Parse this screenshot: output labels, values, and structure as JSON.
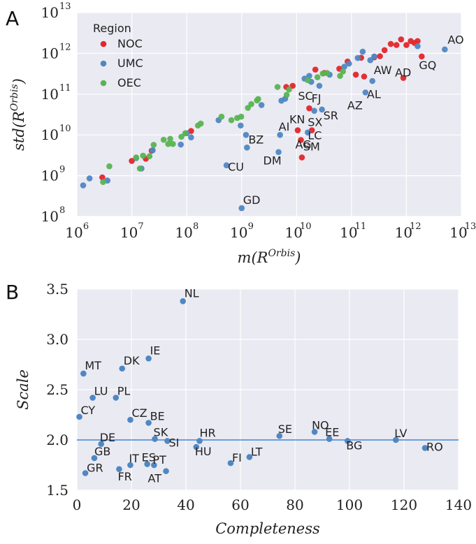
{
  "colors": {
    "NOC": "#e3262a",
    "UMC": "#4f87c3",
    "OEC": "#58b452",
    "line": "#3b86d4",
    "bg": "#eaeaf2",
    "grid": "#ffffff"
  },
  "chart_data": [
    {
      "panel": "A",
      "type": "scatter",
      "xlabel": "m(R^{Orbis})",
      "ylabel": "std(R^{Orbis})",
      "xscale": "log",
      "yscale": "log",
      "xlim": [
        1000000,
        10000000000000
      ],
      "ylim": [
        100000000,
        10000000000000
      ],
      "xticks": [
        {
          "base": "10",
          "exp": "6",
          "value": 1000000
        },
        {
          "base": "10",
          "exp": "7",
          "value": 10000000
        },
        {
          "base": "10",
          "exp": "8",
          "value": 100000000
        },
        {
          "base": "10",
          "exp": "9",
          "value": 1000000000
        },
        {
          "base": "10",
          "exp": "10",
          "value": 10000000000
        },
        {
          "base": "10",
          "exp": "11",
          "value": 100000000000
        },
        {
          "base": "10",
          "exp": "12",
          "value": 1000000000000
        },
        {
          "base": "10",
          "exp": "13",
          "value": 10000000000000
        }
      ],
      "yticks": [
        {
          "base": "10",
          "exp": "8",
          "value": 100000000
        },
        {
          "base": "10",
          "exp": "9",
          "value": 1000000000
        },
        {
          "base": "10",
          "exp": "10",
          "value": 10000000000
        },
        {
          "base": "10",
          "exp": "11",
          "value": 100000000000
        },
        {
          "base": "10",
          "exp": "12",
          "value": 1000000000000
        },
        {
          "base": "10",
          "exp": "13",
          "value": 10000000000000
        }
      ],
      "legend": {
        "title": "Region",
        "placement": "top-left",
        "entries": [
          {
            "label": "NOC",
            "color_key": "NOC"
          },
          {
            "label": "UMC",
            "color_key": "UMC"
          },
          {
            "label": "OEC",
            "color_key": "OEC"
          }
        ]
      },
      "series": [
        {
          "name": "NOC",
          "points": [
            [
              2900000.0,
              910000000.0
            ],
            [
              10000000.0,
              2300000000.0
            ],
            [
              18000000.0,
              2600000000.0
            ],
            [
              23000000.0,
              4100000000.0
            ],
            [
              120000000.0,
              12500000000.0
            ],
            [
              6500000000.0,
              150000000000.0
            ],
            [
              8500000000.0,
              160000000000.0
            ],
            [
              10500000000.0,
              13000000000.0
            ],
            [
              12500000000.0,
              2800000000.0
            ],
            [
              17000000000.0,
              45000000000.0
            ],
            [
              12000000000.0,
              7500000000.0
            ],
            [
              19000000000.0,
              13000000000.0
            ],
            [
              22000000000.0,
              400000000000.0
            ],
            [
              32000000000.0,
              330000000000.0
            ],
            [
              60000000000.0,
              420000000000.0
            ],
            [
              85000000000.0,
              630000000000.0
            ],
            [
              120000000000.0,
              300000000000.0
            ],
            [
              150000000000.0,
              780000000000.0
            ],
            [
              170000000000.0,
              270000000000.0
            ],
            [
              260000000000.0,
              800000000000.0
            ],
            [
              330000000000.0,
              850000000000.0
            ],
            [
              400000000000.0,
              1200000000000.0
            ],
            [
              520000000000.0,
              1700000000000.0
            ],
            [
              660000000000.0,
              1600000000000.0
            ],
            [
              800000000000.0,
              2200000000000.0
            ],
            [
              880000000000.0,
              250000000000.0
            ],
            [
              1000000000000.0,
              1600000000000.0
            ],
            [
              1200000000000.0,
              2000000000000.0
            ],
            [
              1400000000000.0,
              1800000000000.0
            ],
            [
              1600000000000.0,
              2000000000000.0
            ],
            [
              1900000000000.0,
              840000000000.0
            ]
          ]
        },
        {
          "name": "UMC",
          "points": [
            [
              1300000.0,
              580000000.0
            ],
            [
              1700000.0,
              860000000.0
            ],
            [
              3600000.0,
              760000000.0
            ],
            [
              12000000.0,
              2700000000.0
            ],
            [
              15000000.0,
              1500000000.0
            ],
            [
              24000000.0,
              4200000000.0
            ],
            [
              78000000.0,
              5800000000.0
            ],
            [
              100000000.0,
              11000000000.0
            ],
            [
              120000000.0,
              8700000000.0
            ],
            [
              380000000.0,
              23000000000.0
            ],
            [
              530000000.0,
              1800000000.0
            ],
            [
              960000000.0,
              17000000000.0
            ],
            [
              1000000000.0,
              160000000.0
            ],
            [
              1200000000.0,
              10000000000.0
            ],
            [
              1250000000.0,
              4900000000.0
            ],
            [
              2300000000.0,
              54000000000.0
            ],
            [
              4700000000.0,
              3800000000.0
            ],
            [
              5000000000.0,
              10000000000.0
            ],
            [
              5300000000.0,
              69000000000.0
            ],
            [
              6200000000.0,
              77000000000.0
            ],
            [
              14000000000.0,
              240000000000.0
            ],
            [
              17000000000.0,
              280000000000.0
            ],
            [
              16000000000.0,
              11500000000.0
            ],
            [
              18500000000.0,
              200000000000.0
            ],
            [
              21000000000.0,
              39000000000.0
            ],
            [
              29000000000.0,
              42000000000.0
            ],
            [
              26000000000.0,
              160000000000.0
            ],
            [
              40000000000.0,
              300000000000.0
            ],
            [
              74000000000.0,
              470000000000.0
            ],
            [
              90000000000.0,
              560000000000.0
            ],
            [
              130000000000.0,
              770000000000.0
            ],
            [
              160000000000.0,
              1100000000000.0
            ],
            [
              180000000000.0,
              110000000000.0
            ],
            [
              220000000000.0,
              680000000000.0
            ],
            [
              240000000000.0,
              210000000000.0
            ],
            [
              260000000000.0,
              840000000000.0
            ],
            [
              1600000000000.0,
              1500000000000.0
            ],
            [
              5000000000000.0,
              1250000000000.0
            ]
          ]
        },
        {
          "name": "OEC",
          "points": [
            [
              3000000.0,
              700000000.0
            ],
            [
              3900000.0,
              1700000000.0
            ],
            [
              12000000.0,
              2800000000.0
            ],
            [
              14000000.0,
              1500000000.0
            ],
            [
              16000000.0,
              3100000000.0
            ],
            [
              21000000.0,
              3000000000.0
            ],
            [
              25000000.0,
              5700000000.0
            ],
            [
              38000000.0,
              7600000000.0
            ],
            [
              46000000.0,
              6000000000.0
            ],
            [
              50000000.0,
              8000000000.0
            ],
            [
              56000000.0,
              6000000000.0
            ],
            [
              80000000.0,
              9000000000.0
            ],
            [
              94000000.0,
              11000000000.0
            ],
            [
              160000000.0,
              17000000000.0
            ],
            [
              180000000.0,
              19000000000.0
            ],
            [
              430000000.0,
              28000000000.0
            ],
            [
              650000000.0,
              23000000000.0
            ],
            [
              830000000.0,
              26000000000.0
            ],
            [
              980000000.0,
              28000000000.0
            ],
            [
              1300000000.0,
              46000000000.0
            ],
            [
              1500000000.0,
              57000000000.0
            ],
            [
              1900000000.0,
              70000000000.0
            ],
            [
              2000000000.0,
              76000000000.0
            ],
            [
              4500000000.0,
              150000000000.0
            ],
            [
              6600000000.0,
              96000000000.0
            ],
            [
              7300000000.0,
              130000000000.0
            ],
            [
              16000000000.0,
              220000000000.0
            ],
            [
              24000000000.0,
              260000000000.0
            ],
            [
              30000000000.0,
              320000000000.0
            ],
            [
              36000000000.0,
              330000000000.0
            ],
            [
              62000000000.0,
              280000000000.0
            ],
            [
              70000000000.0,
              360000000000.0
            ]
          ]
        }
      ],
      "labels": [
        {
          "text": "AO",
          "x": 5000000000000.0,
          "y": 1250000000000.0
        },
        {
          "text": "GQ",
          "x": 1900000000000.0,
          "y": 840000000000.0
        },
        {
          "text": "AD",
          "x": 880000000000.0,
          "y": 250000000000.0
        },
        {
          "text": "AW",
          "x": 240000000000.0,
          "y": 210000000000.0
        },
        {
          "text": "AL",
          "x": 180000000000.0,
          "y": 110000000000.0
        },
        {
          "text": "AZ",
          "x": 180000000000.0,
          "y": 110000000000.0
        },
        {
          "text": "SC",
          "x": 17000000000.0,
          "y": 45000000000.0
        },
        {
          "text": "FJ",
          "x": 21000000000.0,
          "y": 39000000000.0
        },
        {
          "text": "SR",
          "x": 29000000000.0,
          "y": 42000000000.0
        },
        {
          "text": "KN",
          "x": 10500000000.0,
          "y": 13000000000.0
        },
        {
          "text": "SX",
          "x": 19000000000.0,
          "y": 13000000000.0
        },
        {
          "text": "AI",
          "x": 5000000000.0,
          "y": 10000000000.0
        },
        {
          "text": "LC",
          "x": 16000000000.0,
          "y": 11500000000.0
        },
        {
          "text": "AG",
          "x": 12000000000.0,
          "y": 7500000000.0
        },
        {
          "text": "BZ",
          "x": 1250000000.0,
          "y": 4900000000.0
        },
        {
          "text": "DM",
          "x": 4700000000.0,
          "y": 3800000000.0
        },
        {
          "text": "SM",
          "x": 12500000000.0,
          "y": 2800000000.0
        },
        {
          "text": "CU",
          "x": 530000000.0,
          "y": 1800000000.0
        },
        {
          "text": "GD",
          "x": 1000000000.0,
          "y": 160000000.0
        }
      ]
    },
    {
      "panel": "B",
      "type": "scatter",
      "xlabel": "Completeness",
      "ylabel": "Scale",
      "xlim": [
        0,
        140
      ],
      "ylim": [
        1.5,
        3.5
      ],
      "xticks": [
        "0",
        "20",
        "40",
        "60",
        "80",
        "100",
        "120",
        "140"
      ],
      "yticks": [
        "1.5",
        "2.0",
        "2.5",
        "3.0",
        "3.5"
      ],
      "hline": 2.0,
      "points": [
        {
          "label": "NL",
          "x": 38.9,
          "y": 3.38
        },
        {
          "label": "IE",
          "x": 26.3,
          "y": 2.81
        },
        {
          "label": "DK",
          "x": 16.6,
          "y": 2.71
        },
        {
          "label": "MT",
          "x": 2.4,
          "y": 2.66
        },
        {
          "label": "LU",
          "x": 5.8,
          "y": 2.42
        },
        {
          "label": "PL",
          "x": 14.3,
          "y": 2.42
        },
        {
          "label": "CY",
          "x": 0.9,
          "y": 2.23
        },
        {
          "label": "CZ",
          "x": 19.6,
          "y": 2.2
        },
        {
          "label": "BE",
          "x": 26.3,
          "y": 2.17
        },
        {
          "label": "SK",
          "x": 28.6,
          "y": 2.01
        },
        {
          "label": "SI",
          "x": 33.2,
          "y": 1.99
        },
        {
          "label": "HR",
          "x": 45.0,
          "y": 1.99
        },
        {
          "label": "HU",
          "x": 43.8,
          "y": 1.93
        },
        {
          "label": "SE",
          "x": 74.3,
          "y": 2.04
        },
        {
          "label": "NO",
          "x": 87.2,
          "y": 2.08
        },
        {
          "label": "EE",
          "x": 92.6,
          "y": 2.01
        },
        {
          "label": "BG",
          "x": 99.3,
          "y": 1.99
        },
        {
          "label": "LV",
          "x": 117.0,
          "y": 2.0
        },
        {
          "label": "RO",
          "x": 127.7,
          "y": 1.92
        },
        {
          "label": "DE",
          "x": 8.9,
          "y": 1.96
        },
        {
          "label": "GB",
          "x": 6.4,
          "y": 1.82
        },
        {
          "label": "IT",
          "x": 19.6,
          "y": 1.75
        },
        {
          "label": "ES",
          "x": 25.8,
          "y": 1.76
        },
        {
          "label": "PT",
          "x": 28.3,
          "y": 1.75
        },
        {
          "label": "GR",
          "x": 3.1,
          "y": 1.67
        },
        {
          "label": "FR",
          "x": 15.5,
          "y": 1.71
        },
        {
          "label": "AT",
          "x": 32.7,
          "y": 1.69
        },
        {
          "label": "FI",
          "x": 56.4,
          "y": 1.77
        },
        {
          "label": "LT",
          "x": 63.3,
          "y": 1.83
        }
      ]
    }
  ],
  "panel_letters": {
    "a": "A",
    "b": "B"
  }
}
